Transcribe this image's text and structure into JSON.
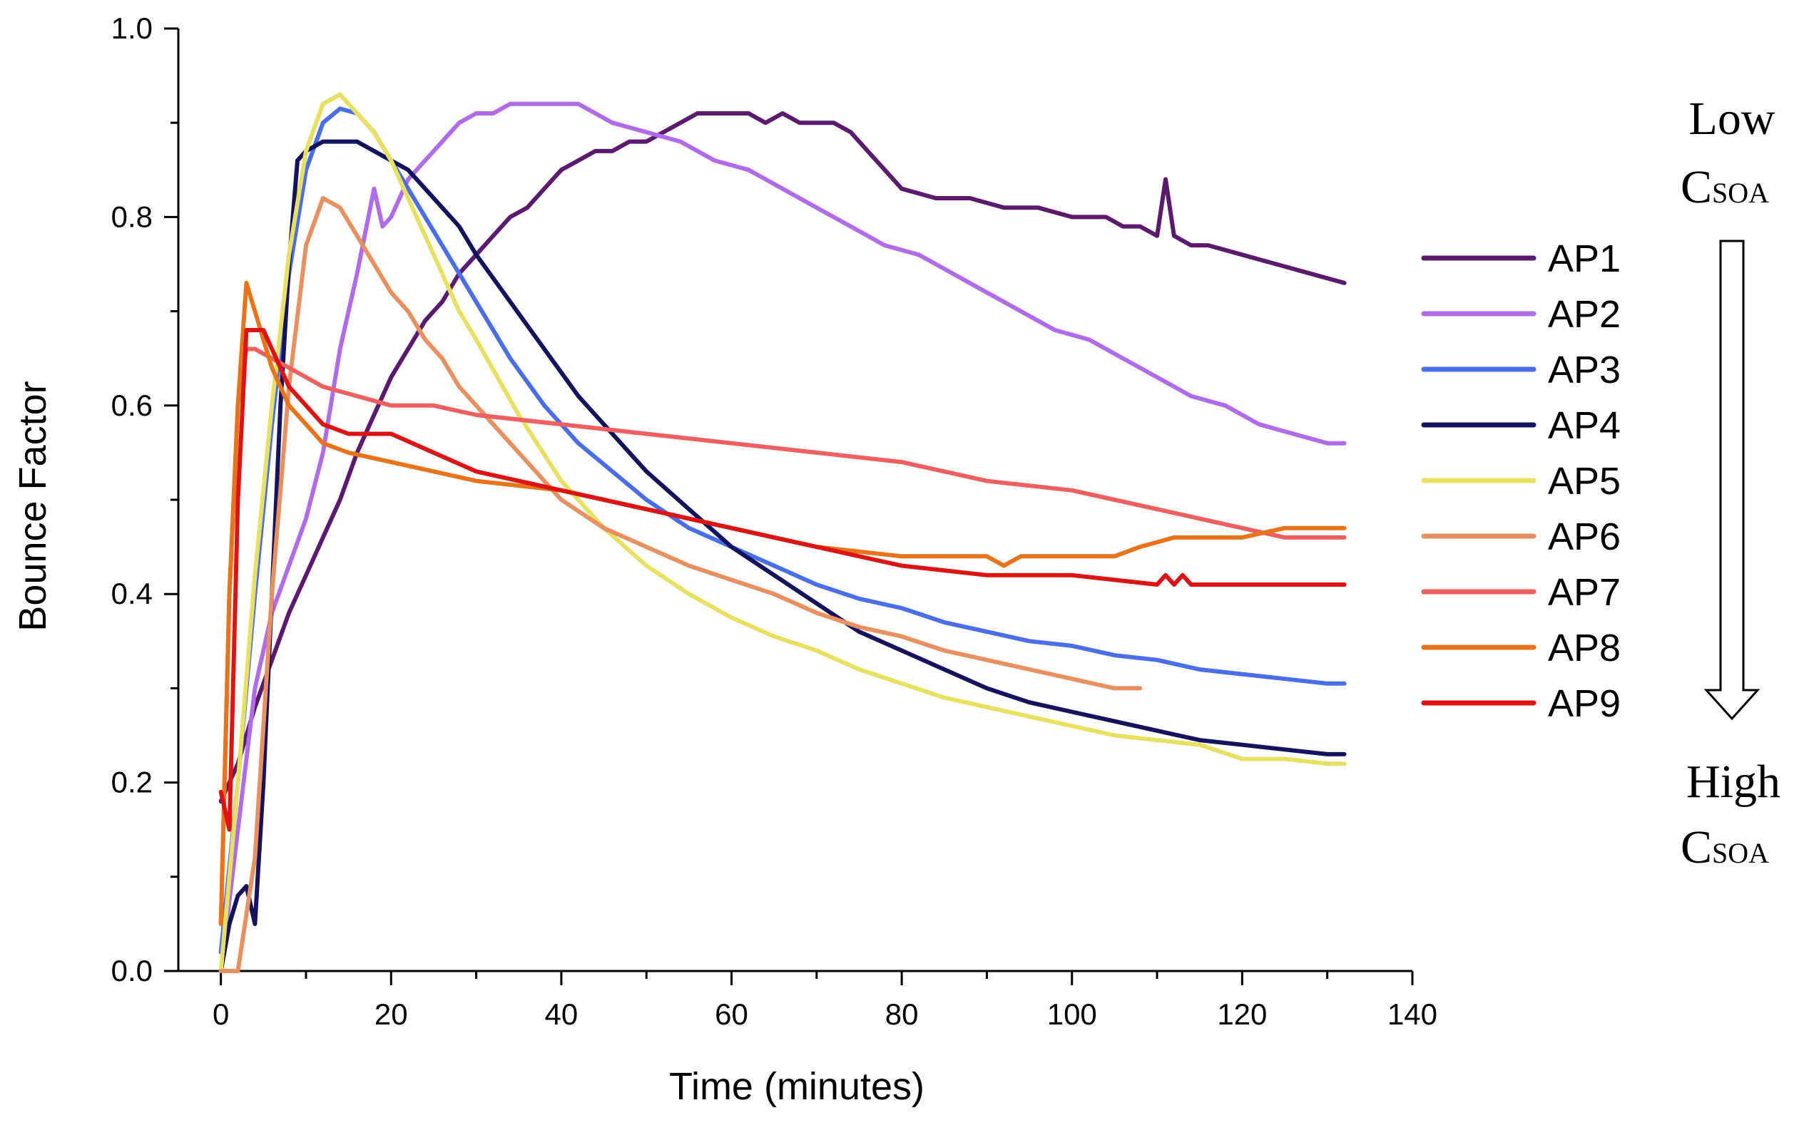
{
  "chart_data": {
    "type": "line",
    "title": "",
    "xlabel": "Time (minutes)",
    "ylabel": "Bounce Factor",
    "xlim": [
      -5,
      140
    ],
    "ylim": [
      0,
      1.0
    ],
    "xticks": [
      "0",
      "20",
      "40",
      "60",
      "80",
      "100",
      "120",
      "140"
    ],
    "yticks": [
      "0.0",
      "0.2",
      "0.4",
      "0.6",
      "0.8",
      "1.0"
    ],
    "legend_position": "right",
    "series": [
      {
        "name": "AP1",
        "color": "#5b1a6e",
        "x": [
          0,
          2,
          4,
          6,
          8,
          10,
          12,
          14,
          16,
          18,
          20,
          22,
          24,
          26,
          28,
          30,
          32,
          34,
          36,
          38,
          40,
          42,
          44,
          46,
          48,
          50,
          52,
          54,
          56,
          58,
          60,
          62,
          64,
          66,
          68,
          70,
          72,
          74,
          76,
          78,
          80,
          84,
          88,
          92,
          96,
          100,
          104,
          106,
          108,
          110,
          111,
          112,
          114,
          116,
          120,
          124,
          128,
          132
        ],
        "y": [
          0.18,
          0.22,
          0.28,
          0.33,
          0.38,
          0.42,
          0.46,
          0.5,
          0.55,
          0.59,
          0.63,
          0.66,
          0.69,
          0.71,
          0.74,
          0.76,
          0.78,
          0.8,
          0.81,
          0.83,
          0.85,
          0.86,
          0.87,
          0.87,
          0.88,
          0.88,
          0.89,
          0.9,
          0.91,
          0.91,
          0.91,
          0.91,
          0.9,
          0.91,
          0.9,
          0.9,
          0.9,
          0.89,
          0.87,
          0.85,
          0.83,
          0.82,
          0.82,
          0.81,
          0.81,
          0.8,
          0.8,
          0.79,
          0.79,
          0.78,
          0.84,
          0.78,
          0.77,
          0.77,
          0.76,
          0.75,
          0.74,
          0.73
        ]
      },
      {
        "name": "AP2",
        "color": "#b06be8",
        "x": [
          0,
          2,
          4,
          6,
          8,
          10,
          12,
          14,
          16,
          18,
          19,
          20,
          22,
          24,
          26,
          28,
          30,
          32,
          34,
          38,
          42,
          46,
          50,
          54,
          58,
          62,
          66,
          70,
          74,
          78,
          82,
          86,
          90,
          94,
          98,
          102,
          106,
          110,
          114,
          118,
          122,
          126,
          130,
          132
        ],
        "y": [
          0.0,
          0.15,
          0.3,
          0.38,
          0.43,
          0.48,
          0.55,
          0.66,
          0.74,
          0.83,
          0.79,
          0.8,
          0.84,
          0.86,
          0.88,
          0.9,
          0.91,
          0.91,
          0.92,
          0.92,
          0.92,
          0.9,
          0.89,
          0.88,
          0.86,
          0.85,
          0.83,
          0.81,
          0.79,
          0.77,
          0.76,
          0.74,
          0.72,
          0.7,
          0.68,
          0.67,
          0.65,
          0.63,
          0.61,
          0.6,
          0.58,
          0.57,
          0.56,
          0.56
        ]
      },
      {
        "name": "AP3",
        "color": "#4a6ee8",
        "x": [
          0,
          2,
          4,
          6,
          8,
          10,
          12,
          14,
          16,
          18,
          20,
          22,
          24,
          26,
          28,
          30,
          34,
          38,
          42,
          46,
          50,
          55,
          60,
          65,
          70,
          75,
          80,
          85,
          90,
          95,
          100,
          105,
          110,
          115,
          120,
          125,
          130,
          132
        ],
        "y": [
          0.02,
          0.2,
          0.4,
          0.58,
          0.74,
          0.85,
          0.9,
          0.915,
          0.91,
          0.89,
          0.86,
          0.83,
          0.8,
          0.77,
          0.74,
          0.71,
          0.65,
          0.6,
          0.56,
          0.53,
          0.5,
          0.47,
          0.45,
          0.43,
          0.41,
          0.395,
          0.385,
          0.37,
          0.36,
          0.35,
          0.345,
          0.335,
          0.33,
          0.32,
          0.315,
          0.31,
          0.305,
          0.305
        ]
      },
      {
        "name": "AP4",
        "color": "#14145e",
        "x": [
          0,
          1,
          2,
          3,
          4,
          5,
          6,
          7,
          8,
          9,
          10,
          12,
          14,
          16,
          18,
          20,
          22,
          24,
          26,
          28,
          30,
          34,
          38,
          42,
          46,
          50,
          55,
          60,
          65,
          70,
          75,
          80,
          85,
          90,
          95,
          100,
          105,
          110,
          115,
          120,
          125,
          130,
          132
        ],
        "y": [
          0.0,
          0.05,
          0.08,
          0.09,
          0.05,
          0.2,
          0.4,
          0.6,
          0.75,
          0.86,
          0.87,
          0.88,
          0.88,
          0.88,
          0.87,
          0.86,
          0.85,
          0.83,
          0.81,
          0.79,
          0.76,
          0.71,
          0.66,
          0.61,
          0.57,
          0.53,
          0.49,
          0.45,
          0.42,
          0.39,
          0.36,
          0.34,
          0.32,
          0.3,
          0.285,
          0.275,
          0.265,
          0.255,
          0.245,
          0.24,
          0.235,
          0.23,
          0.23
        ]
      },
      {
        "name": "AP5",
        "color": "#e8e060",
        "x": [
          0,
          2,
          4,
          6,
          8,
          10,
          12,
          14,
          16,
          18,
          20,
          22,
          24,
          26,
          28,
          30,
          35,
          40,
          45,
          50,
          55,
          60,
          65,
          70,
          75,
          80,
          85,
          90,
          95,
          100,
          105,
          110,
          115,
          120,
          125,
          130,
          132
        ],
        "y": [
          0.0,
          0.2,
          0.42,
          0.6,
          0.76,
          0.87,
          0.92,
          0.93,
          0.91,
          0.89,
          0.86,
          0.82,
          0.78,
          0.74,
          0.7,
          0.67,
          0.59,
          0.52,
          0.47,
          0.43,
          0.4,
          0.375,
          0.355,
          0.34,
          0.32,
          0.305,
          0.29,
          0.28,
          0.27,
          0.26,
          0.25,
          0.245,
          0.24,
          0.225,
          0.225,
          0.22,
          0.22
        ]
      },
      {
        "name": "AP6",
        "color": "#e89060",
        "x": [
          0,
          2,
          4,
          6,
          8,
          10,
          12,
          14,
          16,
          18,
          20,
          22,
          24,
          26,
          28,
          30,
          35,
          40,
          45,
          50,
          55,
          60,
          65,
          70,
          75,
          80,
          85,
          90,
          95,
          100,
          105,
          108
        ],
        "y": [
          0.0,
          0.0,
          0.12,
          0.4,
          0.62,
          0.77,
          0.82,
          0.81,
          0.78,
          0.75,
          0.72,
          0.7,
          0.67,
          0.65,
          0.62,
          0.6,
          0.55,
          0.5,
          0.47,
          0.45,
          0.43,
          0.415,
          0.4,
          0.38,
          0.365,
          0.355,
          0.34,
          0.33,
          0.32,
          0.31,
          0.3,
          0.3
        ]
      },
      {
        "name": "AP7",
        "color": "#ee6060",
        "x": [
          0,
          1,
          2,
          3,
          4,
          6,
          8,
          10,
          12,
          14,
          16,
          20,
          25,
          30,
          40,
          50,
          60,
          70,
          80,
          90,
          100,
          110,
          115,
          120,
          125,
          130,
          132
        ],
        "y": [
          0.05,
          0.4,
          0.6,
          0.66,
          0.66,
          0.65,
          0.64,
          0.63,
          0.62,
          0.615,
          0.61,
          0.6,
          0.6,
          0.59,
          0.58,
          0.57,
          0.56,
          0.55,
          0.54,
          0.52,
          0.51,
          0.49,
          0.48,
          0.47,
          0.46,
          0.46,
          0.46
        ]
      },
      {
        "name": "AP8",
        "color": "#e8731a",
        "x": [
          0,
          1,
          2,
          3,
          4,
          5,
          6,
          8,
          10,
          12,
          15,
          20,
          25,
          30,
          40,
          50,
          60,
          70,
          80,
          90,
          92,
          94,
          100,
          105,
          108,
          112,
          116,
          120,
          125,
          130,
          132
        ],
        "y": [
          0.05,
          0.4,
          0.6,
          0.73,
          0.7,
          0.67,
          0.64,
          0.6,
          0.58,
          0.56,
          0.55,
          0.54,
          0.53,
          0.52,
          0.51,
          0.49,
          0.47,
          0.45,
          0.44,
          0.44,
          0.43,
          0.44,
          0.44,
          0.44,
          0.45,
          0.46,
          0.46,
          0.46,
          0.47,
          0.47,
          0.47
        ]
      },
      {
        "name": "AP9",
        "color": "#dc1414",
        "x": [
          0,
          1,
          2,
          3,
          4,
          5,
          6,
          8,
          10,
          12,
          15,
          20,
          25,
          30,
          40,
          50,
          60,
          70,
          80,
          90,
          100,
          110,
          111,
          112,
          113,
          114,
          115,
          120,
          132
        ],
        "y": [
          0.19,
          0.15,
          0.5,
          0.68,
          0.68,
          0.68,
          0.66,
          0.62,
          0.6,
          0.58,
          0.57,
          0.57,
          0.55,
          0.53,
          0.51,
          0.49,
          0.47,
          0.45,
          0.43,
          0.42,
          0.42,
          0.41,
          0.42,
          0.41,
          0.42,
          0.41,
          0.41,
          0.41,
          0.41
        ]
      }
    ]
  },
  "annotations": {
    "top_line1": "Low",
    "top_c": "C",
    "top_sub": "SOA",
    "bottom_line1": "High",
    "bottom_c": "C",
    "bottom_sub": "SOA"
  }
}
